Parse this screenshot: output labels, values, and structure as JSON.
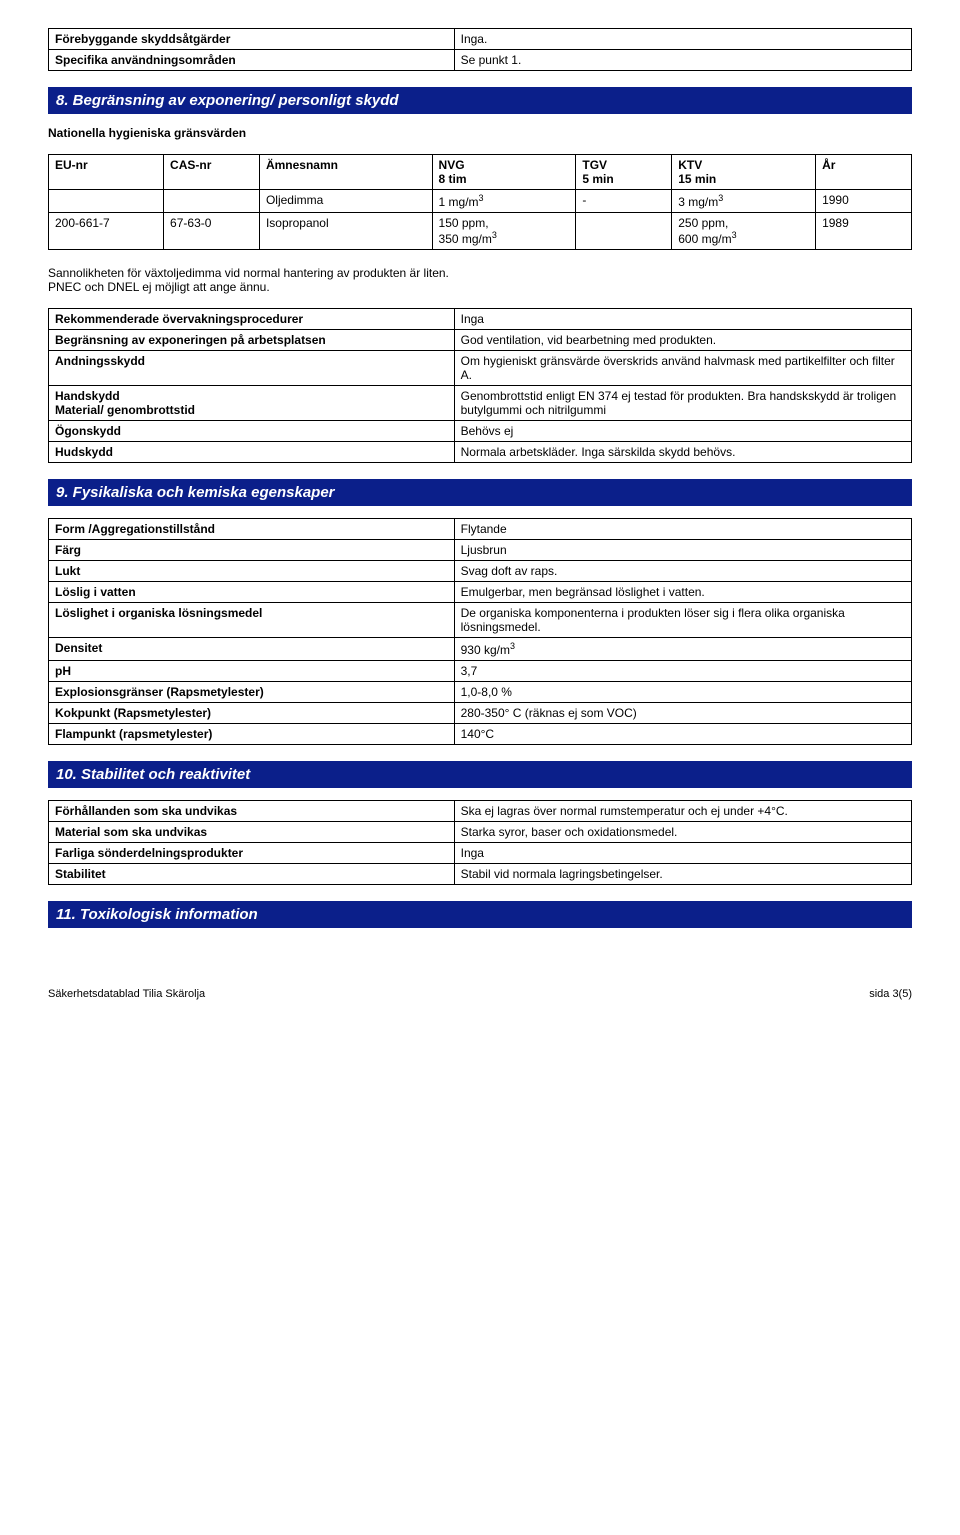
{
  "topTable": {
    "rows": [
      {
        "label": "Förebyggande skyddsåtgärder",
        "value": "Inga."
      },
      {
        "label": "Specifika användningsområden",
        "value": "Se punkt 1."
      }
    ]
  },
  "section8": {
    "title": "8. Begränsning av exponering/ personligt skydd",
    "intro": "Nationella hygieniska gränsvärden",
    "headers": {
      "c0": "EU-nr",
      "c1": "CAS-nr",
      "c2": "Ämnesnamn",
      "c3a": "NVG",
      "c3b": "8 tim",
      "c4a": "TGV",
      "c4b": "5 min",
      "c5a": "KTV",
      "c5b": "15 min",
      "c6": "År"
    },
    "rows": [
      {
        "c0": "",
        "c1": "",
        "c2": "Oljedimma",
        "c3": "1 mg/m³",
        "c4": "-",
        "c5": "3 mg/m³",
        "c6": "1990"
      },
      {
        "c0": "200-661-7",
        "c1": "67-63-0",
        "c2": "Isopropanol",
        "c3": "150 ppm,\n350 mg/m³",
        "c4": "",
        "c5": "250 ppm,\n600 mg/m³",
        "c6": "1989"
      }
    ],
    "note1": "Sannolikheten för växtoljedimma vid normal hantering av produkten är liten.",
    "note2": "PNEC och DNEL ej möjligt att ange ännu.",
    "table2": {
      "rows": [
        {
          "k": "Rekommenderade övervakningsprocedurer",
          "v": "Inga"
        },
        {
          "k": "Begränsning av exponeringen på arbetsplatsen",
          "v": "God ventilation, vid bearbetning med produkten."
        },
        {
          "k": "Andningsskydd",
          "v": "Om hygieniskt gränsvärde överskrids använd halvmask med partikelfilter och filter A."
        },
        {
          "k": "Handskydd\nMaterial/ genombrottstid",
          "v": "Genombrottstid enligt EN 374 ej testad för produkten. Bra handskskydd är troligen butylgummi och nitrilgummi"
        },
        {
          "k": "Ögonskydd",
          "v": "Behövs ej"
        },
        {
          "k": "Hudskydd",
          "v": "Normala arbetskläder. Inga särskilda skydd behövs."
        }
      ]
    }
  },
  "section9": {
    "title": "9. Fysikaliska och kemiska egenskaper",
    "rows": [
      {
        "k": "Form /Aggregationstillstånd",
        "v": "Flytande"
      },
      {
        "k": "Färg",
        "v": "Ljusbrun"
      },
      {
        "k": "Lukt",
        "v": "Svag doft av raps."
      },
      {
        "k": "Löslig i vatten",
        "v": "Emulgerbar, men begränsad löslighet i vatten."
      },
      {
        "k": "Löslighet i organiska lösningsmedel",
        "v": "De organiska komponenterna i produkten löser sig i flera olika organiska lösningsmedel."
      },
      {
        "k": "Densitet",
        "v": "930 kg/m³"
      },
      {
        "k": "pH",
        "v": "3,7"
      },
      {
        "k": "Explosionsgränser (Rapsmetylester)",
        "v": "1,0-8,0 %"
      },
      {
        "k": "Kokpunkt (Rapsmetylester)",
        "v": "280-350° C   (räknas ej som VOC)"
      },
      {
        "k": "Flampunkt (rapsmetylester)",
        "v": "140°C"
      }
    ]
  },
  "section10": {
    "title": "10. Stabilitet och reaktivitet",
    "rows": [
      {
        "k": "Förhållanden som ska undvikas",
        "v": "Ska ej lagras över normal rumstemperatur och ej under +4°C."
      },
      {
        "k": "Material som ska undvikas",
        "v": "Starka syror, baser och oxidationsmedel."
      },
      {
        "k": "Farliga sönderdelningsprodukter",
        "v": "Inga"
      },
      {
        "k": "Stabilitet",
        "v": "Stabil vid normala lagringsbetingelser."
      }
    ]
  },
  "section11": {
    "title": "11. Toxikologisk information"
  },
  "footer": {
    "left": "Säkerhetsdatablad Tilia Skärolja",
    "right": "sida 3(5)"
  },
  "colwidths": {
    "kvLeft": "47%",
    "exp": [
      "12%",
      "10%",
      "18%",
      "15%",
      "10%",
      "15%",
      "10%"
    ]
  }
}
